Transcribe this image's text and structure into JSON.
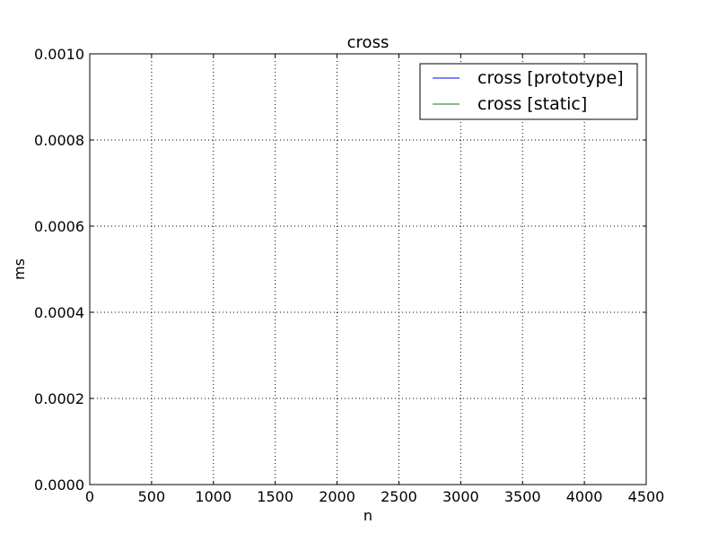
{
  "chart_data": {
    "type": "line",
    "title": "cross",
    "xlabel": "n",
    "ylabel": "ms",
    "xlim": [
      0,
      4500
    ],
    "ylim": [
      0,
      0.001
    ],
    "xticks": [
      0,
      500,
      1000,
      1500,
      2000,
      2500,
      3000,
      3500,
      4000,
      4500
    ],
    "xtick_labels": [
      "0",
      "500",
      "1000",
      "1500",
      "2000",
      "2500",
      "3000",
      "3500",
      "4000",
      "4500"
    ],
    "yticks": [
      0,
      0.0002,
      0.0004,
      0.0006,
      0.0008,
      0.001
    ],
    "ytick_labels": [
      "0.0000",
      "0.0002",
      "0.0004",
      "0.0006",
      "0.0008",
      "0.0010"
    ],
    "grid": true,
    "legend_position": "top-right",
    "series": [
      {
        "name": "cross [prototype]",
        "color": "#0000ff",
        "x": [
          1,
          2,
          4,
          8,
          16,
          32,
          64,
          128,
          256,
          512,
          1024,
          2048,
          4096
        ],
        "y": [
          0,
          0,
          0,
          0,
          0,
          0,
          0,
          0,
          0,
          0,
          0,
          0,
          0
        ]
      },
      {
        "name": "cross [static]",
        "color": "#008000",
        "x": [
          1,
          2,
          4,
          8,
          16,
          32,
          64,
          128,
          256,
          512,
          1024,
          2048,
          4096
        ],
        "y": [
          0,
          0,
          0,
          0,
          0,
          0,
          0,
          0,
          0,
          0,
          0,
          0,
          0
        ]
      }
    ]
  }
}
